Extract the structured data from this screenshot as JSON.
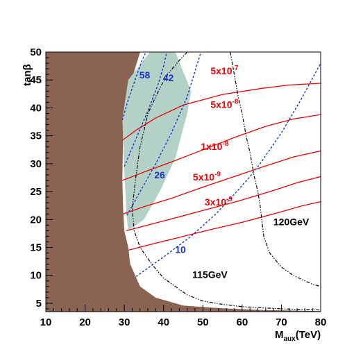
{
  "chart_data": {
    "type": "line",
    "title": "",
    "xlabel": "M",
    "xlabel_sub": "aux",
    "xlabel_unit": "(TeV)",
    "ylabel": "tanβ",
    "xlim": [
      10,
      80
    ],
    "ylim": [
      3.5,
      50
    ],
    "xticks": [
      "10",
      "20",
      "30",
      "40",
      "50",
      "60",
      "70",
      "80"
    ],
    "yticks": [
      "5",
      "10",
      "15",
      "20",
      "25",
      "30",
      "35",
      "40",
      "45",
      "50"
    ],
    "colors": {
      "excluded_region": "#8b6352",
      "allowed_band": "#b4d1c8",
      "red_contours": "#ee0000",
      "blue_contours": "#1a33cc",
      "higgs_contours": "#000000"
    },
    "regions": [
      {
        "name": "brown-excluded",
        "points": [
          [
            10,
            50
          ],
          [
            34,
            50
          ],
          [
            31,
            43
          ],
          [
            29.7,
            36
          ],
          [
            29.5,
            27
          ],
          [
            29.7,
            22
          ],
          [
            30,
            18
          ],
          [
            31,
            15
          ],
          [
            31.5,
            12
          ],
          [
            34,
            8
          ],
          [
            38,
            6
          ],
          [
            45,
            4.6
          ],
          [
            55,
            4.1
          ],
          [
            65,
            3.8
          ],
          [
            80,
            3.6
          ],
          [
            80,
            3.5
          ],
          [
            10,
            3.5
          ]
        ]
      },
      {
        "name": "green-band",
        "points": [
          [
            36.5,
            50
          ],
          [
            43,
            50
          ],
          [
            47,
            43
          ],
          [
            46,
            39
          ],
          [
            43,
            31
          ],
          [
            39,
            25
          ],
          [
            35,
            20
          ],
          [
            31,
            18
          ],
          [
            30.5,
            21
          ],
          [
            30,
            29
          ],
          [
            29.5,
            38
          ],
          [
            31,
            45
          ]
        ]
      }
    ],
    "series": [
      {
        "label": "5x10",
        "exponent": "-7",
        "color": "#ee0000",
        "x": [
          29.5,
          33,
          38,
          45,
          55,
          65,
          72,
          80
        ],
        "y": [
          34.2,
          36,
          38.2,
          40.5,
          42.4,
          43.5,
          44.1,
          44.4
        ]
      },
      {
        "label": "5x10",
        "exponent": "-8",
        "color": "#ee0000",
        "x": [
          29.5,
          35,
          42,
          50,
          58,
          66,
          73,
          80
        ],
        "y": [
          27,
          28.5,
          30.3,
          32.5,
          34.7,
          36.7,
          38,
          38.8
        ]
      },
      {
        "label": "1x10",
        "exponent": "-8",
        "color": "#ee0000",
        "x": [
          29.7,
          35,
          42,
          50,
          58,
          66,
          73,
          80
        ],
        "y": [
          21,
          22.3,
          23.8,
          25.8,
          27.7,
          29.6,
          31.2,
          32.3
        ]
      },
      {
        "label": "5x10",
        "exponent": "-9",
        "color": "#ee0000",
        "x": [
          30.5,
          36,
          43,
          51,
          59,
          67,
          74,
          80
        ],
        "y": [
          18,
          19,
          20.3,
          21.8,
          23.3,
          25,
          26.6,
          27.7
        ]
      },
      {
        "label": "3x10",
        "exponent": "-9",
        "color": "#ee0000",
        "x": [
          31,
          37,
          44,
          52,
          60,
          68,
          75,
          80
        ],
        "y": [
          14.5,
          15.6,
          16.8,
          18.2,
          19.5,
          21,
          22.4,
          23.2
        ]
      },
      {
        "label": "58",
        "color": "#1a33cc",
        "x": [
          29.5,
          31,
          33,
          34.5,
          35.5
        ],
        "y": [
          37.8,
          41.5,
          45.5,
          48.5,
          50
        ]
      },
      {
        "label": "42",
        "color": "#1a33cc",
        "x": [
          30,
          33,
          36,
          38.5,
          40,
          40.8
        ],
        "y": [
          29.5,
          34.5,
          39.5,
          44,
          47.5,
          50
        ]
      },
      {
        "label": "26",
        "color": "#1a33cc",
        "x": [
          30.7,
          34,
          38,
          42,
          46,
          49.5
        ],
        "y": [
          20.8,
          25,
          30,
          35.5,
          42,
          50
        ]
      },
      {
        "label": "10",
        "color": "#1a33cc",
        "x": [
          33,
          40,
          47,
          53,
          58,
          62,
          65,
          70,
          75,
          80
        ],
        "y": [
          9.8,
          13.3,
          17,
          20.8,
          24.5,
          27.7,
          30.4,
          35.5,
          41.5,
          48
        ]
      },
      {
        "label": "115GeV",
        "color": "#000000",
        "x": [
          46,
          44,
          41,
          39,
          36,
          34,
          33,
          32,
          32.5,
          34,
          37,
          40,
          43,
          46,
          50,
          55,
          60,
          65,
          70,
          75,
          80
        ],
        "y": [
          50,
          48.5,
          46,
          43.5,
          39,
          33,
          28,
          22,
          18,
          15,
          12,
          9.5,
          8,
          6.5,
          5.4,
          4.8,
          4.4,
          4.2,
          4,
          3.9,
          3.8
        ]
      },
      {
        "label": "120GeV",
        "color": "#000000",
        "x": [
          57,
          58,
          59,
          60,
          61,
          62,
          63,
          64,
          64.5,
          65,
          65.5,
          67,
          70,
          73,
          76,
          78,
          80
        ],
        "y": [
          50,
          46,
          42,
          39,
          35,
          32,
          28,
          25,
          23,
          20,
          17,
          14,
          11.5,
          10,
          9,
          8.4,
          8
        ]
      }
    ],
    "annotations": [
      {
        "text": "5x10",
        "sup": "-7",
        "x": 55.5,
        "y": 46,
        "color": "#ee0000"
      },
      {
        "text": "5x10",
        "sup": "-8",
        "x": 55.5,
        "y": 40,
        "color": "#ee0000"
      },
      {
        "text": "1x10",
        "sup": "-8",
        "x": 53,
        "y": 32.5,
        "color": "#ee0000"
      },
      {
        "text": "5x10",
        "sup": "-9",
        "x": 51,
        "y": 27,
        "color": "#ee0000"
      },
      {
        "text": "3x10",
        "sup": "-9",
        "x": 54,
        "y": 22.5,
        "color": "#ee0000"
      },
      {
        "text": "58",
        "x": 35.2,
        "y": 45.3,
        "color": "#1a33cc"
      },
      {
        "text": "42",
        "x": 41.2,
        "y": 44.8,
        "color": "#1a33cc"
      },
      {
        "text": "26",
        "x": 39,
        "y": 27.4,
        "color": "#1a33cc"
      },
      {
        "text": "10",
        "x": 44.3,
        "y": 14,
        "color": "#1a33cc"
      },
      {
        "text": "115GeV",
        "x": 51.8,
        "y": 9.5,
        "color": "#000000"
      },
      {
        "text": "120GeV",
        "x": 72.5,
        "y": 19,
        "color": "#000000"
      }
    ]
  }
}
